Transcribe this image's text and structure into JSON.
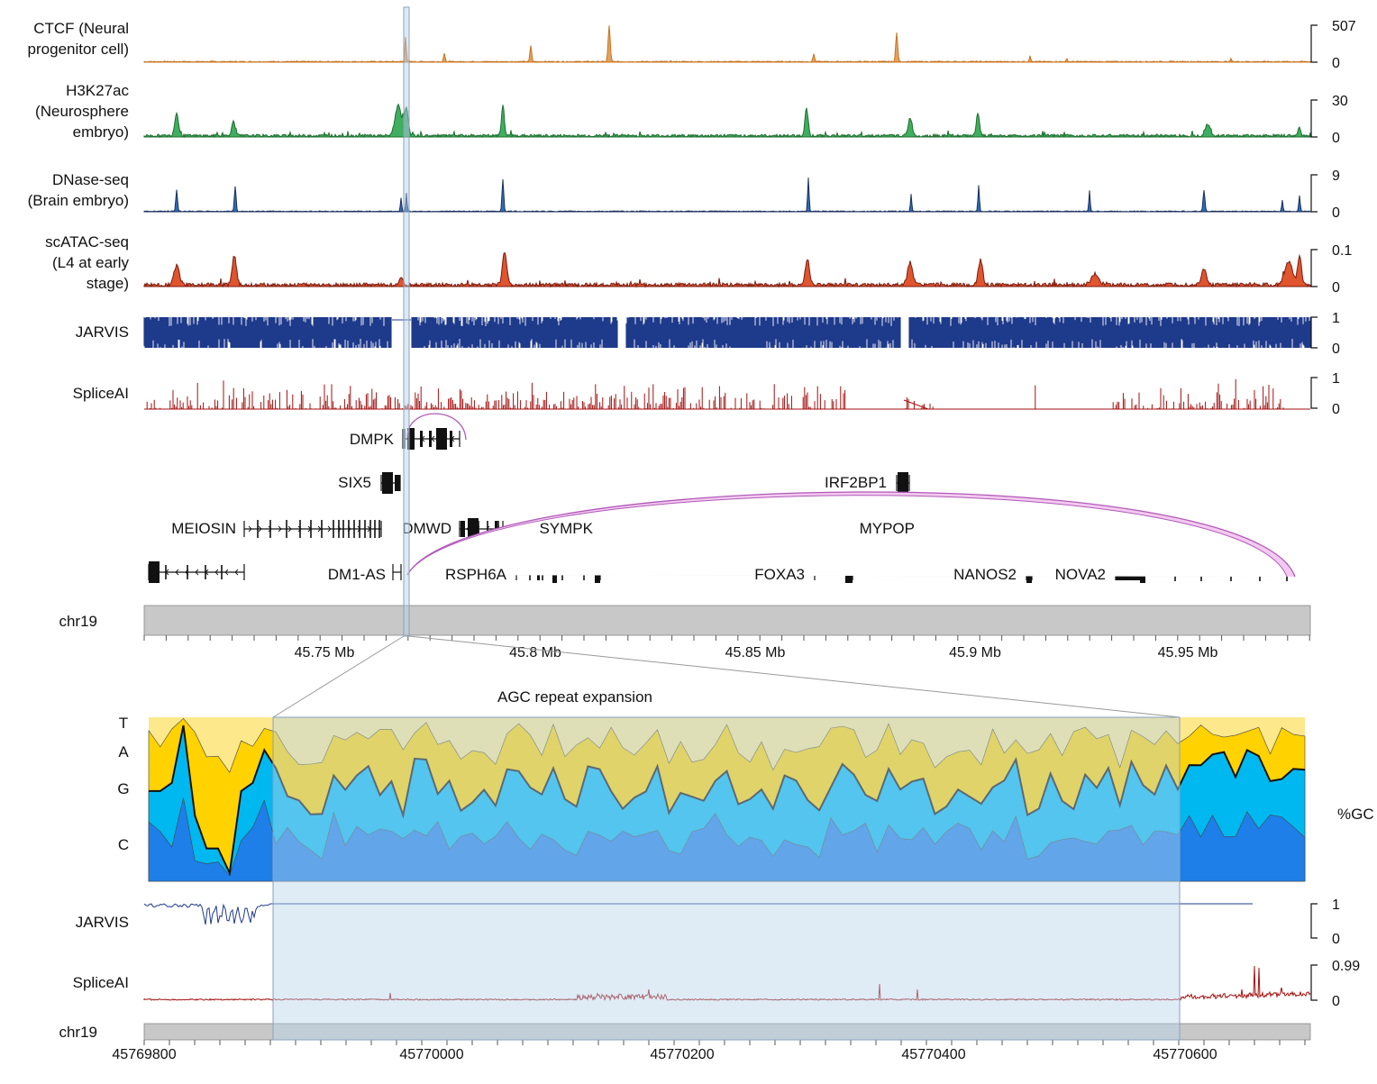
{
  "tracks": [
    {
      "id": "ctcf",
      "label": [
        "CTCF (Neural",
        "progenitor cell)"
      ],
      "max": "507",
      "min": "0",
      "color": "#c8731e",
      "fill": "#e4a260"
    },
    {
      "id": "h3k27ac",
      "label": [
        "H3K27ac",
        "(Neurosphere",
        "embryo)"
      ],
      "max": "30",
      "min": "0",
      "color": "#1e6e2e",
      "fill": "#3fae60"
    },
    {
      "id": "dnase",
      "label": [
        "DNase-seq",
        "(Brain embryo)"
      ],
      "max": "9",
      "min": "0",
      "color": "#1a2f5e",
      "fill": "#2f6db5"
    },
    {
      "id": "scatac",
      "label": [
        "scATAC-seq",
        "(L4 at early",
        "stage)"
      ],
      "max": "0.1",
      "min": "0",
      "color": "#7a1c10",
      "fill": "#e0542e"
    },
    {
      "id": "jarvis",
      "label": [
        "JARVIS"
      ],
      "max": "1",
      "min": "0",
      "color": "#1f3a8a",
      "fill": "#1f3a8a"
    },
    {
      "id": "spliceai",
      "label": [
        "SpliceAI"
      ],
      "max": "1",
      "min": "0",
      "color": "#a30f0f",
      "fill": "#a30f0f"
    }
  ],
  "genes": [
    "DMPK",
    "SIX5",
    "IRF2BP1",
    "MEIOSIN",
    "DMWD",
    "SYMPK",
    "MYPOP",
    "DM1-AS",
    "RSPH6A",
    "FOXA3",
    "NANOS2",
    "NOVA2"
  ],
  "chrom_label": "chr19",
  "top_axis_ticks": [
    "45.75 Mb",
    "45.8 Mb",
    "45.85 Mb",
    "45.9 Mb",
    "45.95 Mb"
  ],
  "zoom": {
    "title": "AGC repeat expansion",
    "bases": [
      "T",
      "A",
      "G",
      "C"
    ],
    "gc_label": "%GC",
    "base_colors": {
      "T": "#fde88c",
      "A": "#ffd200",
      "G": "#00b8f0",
      "C": "#1e7fe8"
    },
    "jarvis": {
      "label": "JARVIS",
      "max": "1",
      "min": "0"
    },
    "spliceai": {
      "label": "SpliceAI",
      "max": "0.99",
      "min": "0"
    },
    "chrom_label": "chr19",
    "axis_ticks": [
      "45769800",
      "45770000",
      "45770200",
      "45770400",
      "45770600"
    ]
  }
}
